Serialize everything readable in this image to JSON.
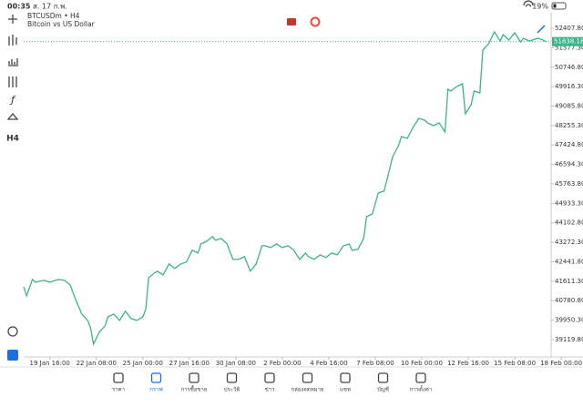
{
  "status_bar": {
    "time": "00:35",
    "date": "ส. 17 ก.พ.",
    "battery": "19%"
  },
  "toolbar": {
    "timeframe": "H4"
  },
  "chart_data": {
    "type": "line",
    "title": "BTCUSDm • H4",
    "subtitle": "Bitcoin vs US Dollar",
    "x": [
      0,
      1,
      3,
      4,
      7,
      9,
      12,
      14,
      16,
      18,
      20,
      22,
      23,
      24,
      26,
      28,
      29,
      31,
      33,
      35,
      37,
      39,
      41,
      42,
      43,
      45,
      46,
      48,
      50,
      52,
      54,
      56,
      58,
      60,
      61,
      63,
      65,
      66,
      68,
      70,
      72,
      74,
      76,
      78,
      80,
      82,
      83,
      85,
      87,
      89,
      91,
      93,
      95,
      97,
      98,
      100,
      102,
      104,
      106,
      108,
      110,
      112,
      113,
      115,
      117,
      118,
      120,
      122,
      124,
      125,
      127,
      129,
      130,
      132,
      134,
      136,
      138,
      139,
      141,
      143,
      145,
      146,
      147,
      149,
      151,
      152,
      154,
      155,
      157,
      158,
      160,
      162,
      164,
      165,
      167,
      169,
      171,
      172,
      174,
      177,
      180
    ],
    "series": [
      {
        "name": "BTCUSDm",
        "color": "#3cb388",
        "values": [
          41375,
          40986,
          41685,
          41569,
          41647,
          41569,
          41685,
          41647,
          41452,
          40792,
          40209,
          39937,
          39626,
          38927,
          39432,
          39704,
          40092,
          40209,
          39937,
          40326,
          40015,
          39937,
          40092,
          40403,
          41763,
          41957,
          42035,
          41880,
          42346,
          42152,
          42346,
          42424,
          42929,
          42812,
          43201,
          43317,
          43511,
          43356,
          43434,
          43201,
          42540,
          42540,
          42657,
          42035,
          42346,
          43123,
          43123,
          43045,
          43201,
          43045,
          43123,
          42929,
          42540,
          42812,
          42657,
          42540,
          42734,
          42618,
          42812,
          42734,
          43123,
          43201,
          42929,
          42967,
          43434,
          44366,
          44483,
          45376,
          45454,
          45920,
          46930,
          47396,
          47785,
          47707,
          48173,
          48562,
          48484,
          48368,
          48251,
          48368,
          47979,
          49805,
          49727,
          49922,
          50038,
          48756,
          49145,
          49727,
          49650,
          51476,
          51748,
          52253,
          51864,
          52136,
          51903,
          52214,
          51825,
          51981,
          51864,
          51981,
          51838.18
        ]
      }
    ],
    "current_price": 51838.18,
    "xlim": [
      0,
      187
    ],
    "xticks": [
      {
        "value": 9,
        "label": "19 Jan 16:00"
      },
      {
        "value": 25,
        "label": "22 Jan 08:00"
      },
      {
        "value": 41,
        "label": "25 Jan 00:00"
      },
      {
        "value": 57,
        "label": "27 Jan 16:00"
      },
      {
        "value": 73,
        "label": "30 Jan 08:00"
      },
      {
        "value": 89,
        "label": "2 Feb 00:00"
      },
      {
        "value": 105,
        "label": "4 Feb 16:00"
      },
      {
        "value": 121,
        "label": "7 Feb 08:00"
      },
      {
        "value": 137,
        "label": "10 Feb 00:00"
      },
      {
        "value": 153,
        "label": "12 Feb 16:00"
      },
      {
        "value": 169,
        "label": "15 Feb 08:00"
      },
      {
        "value": 185,
        "label": "18 Feb 00:00"
      }
    ],
    "ylim": [
      38650,
      52720
    ],
    "yticks": [
      {
        "value": 52407.8,
        "label": "52407.80"
      },
      {
        "value": 51577.3,
        "label": "51577.30"
      },
      {
        "value": 50746.8,
        "label": "50746.80"
      },
      {
        "value": 49916.3,
        "label": "49916.30"
      },
      {
        "value": 49085.8,
        "label": "49085.80"
      },
      {
        "value": 48255.3,
        "label": "48255.30"
      },
      {
        "value": 47424.8,
        "label": "47424.80"
      },
      {
        "value": 46594.3,
        "label": "46594.30"
      },
      {
        "value": 45763.8,
        "label": "45763.80"
      },
      {
        "value": 44933.3,
        "label": "44933.30"
      },
      {
        "value": 44102.8,
        "label": "44102.80"
      },
      {
        "value": 43272.3,
        "label": "43272.30"
      },
      {
        "value": 42441.8,
        "label": "42441.80"
      },
      {
        "value": 41611.3,
        "label": "41611.30"
      },
      {
        "value": 40780.8,
        "label": "40780.80"
      },
      {
        "value": 39950.3,
        "label": "39950.30"
      },
      {
        "value": 39119.8,
        "label": "39119.80"
      }
    ],
    "grid": false
  },
  "tabs": [
    {
      "label": "ราคา"
    },
    {
      "label": "กราฟ"
    },
    {
      "label": "การซื้อขาย"
    },
    {
      "label": "ประวัติ"
    },
    {
      "label": "ข่าว"
    },
    {
      "label": "กล่องจดหมาย"
    },
    {
      "label": "แชท"
    },
    {
      "label": "บัญชี"
    },
    {
      "label": "การตั้งค่า"
    }
  ],
  "active_tab": 1
}
